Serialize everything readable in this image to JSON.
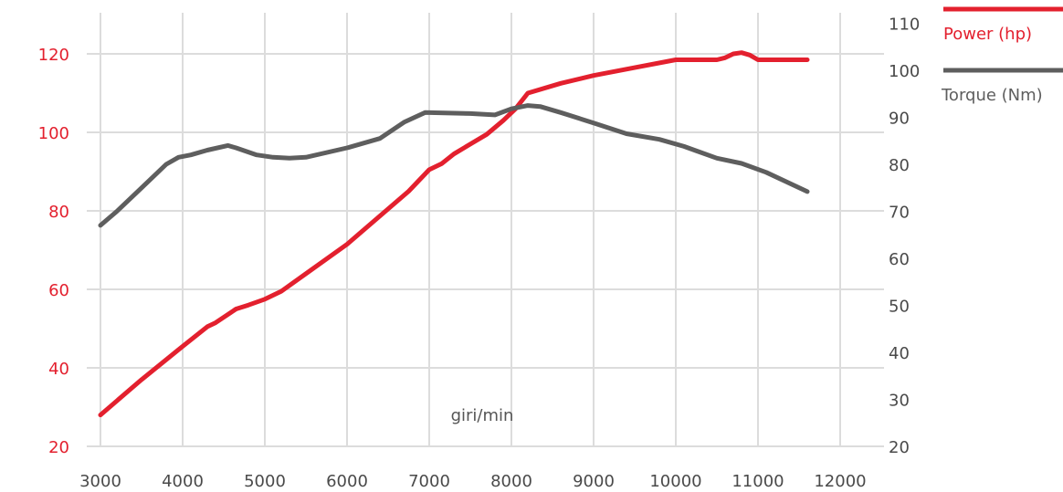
{
  "chart_data": {
    "type": "line",
    "xlabel": "giri/min",
    "x_ticks": [
      3000,
      4000,
      5000,
      6000,
      7000,
      8000,
      9000,
      10000,
      11000,
      12000
    ],
    "y_left_ticks": [
      20,
      40,
      60,
      80,
      100,
      120
    ],
    "y_right_ticks": [
      20,
      30,
      40,
      50,
      60,
      70,
      80,
      90,
      100,
      110
    ],
    "xlim": [
      3000,
      12000
    ],
    "ylim_left": [
      20,
      120
    ],
    "ylim_right": [
      20,
      110
    ],
    "grid": true,
    "legend_position": "top-right",
    "series": [
      {
        "name": "Power (hp)",
        "axis": "left",
        "color": "#e3202e",
        "points": [
          [
            3000,
            28
          ],
          [
            3500,
            37
          ],
          [
            4000,
            45.5
          ],
          [
            4300,
            50.5
          ],
          [
            4400,
            51.5
          ],
          [
            4650,
            55
          ],
          [
            4800,
            56
          ],
          [
            5000,
            57.5
          ],
          [
            5200,
            59.5
          ],
          [
            5500,
            64
          ],
          [
            6000,
            71.5
          ],
          [
            6500,
            80.5
          ],
          [
            6750,
            85
          ],
          [
            7000,
            90.5
          ],
          [
            7150,
            92
          ],
          [
            7300,
            94.5
          ],
          [
            7500,
            97
          ],
          [
            7700,
            99.5
          ],
          [
            7900,
            103
          ],
          [
            8050,
            106
          ],
          [
            8200,
            110
          ],
          [
            8600,
            112.5
          ],
          [
            9000,
            114.5
          ],
          [
            9500,
            116.5
          ],
          [
            10000,
            118.5
          ],
          [
            10500,
            118.5
          ],
          [
            10600,
            119
          ],
          [
            10700,
            120
          ],
          [
            10800,
            120.3
          ],
          [
            10900,
            119.7
          ],
          [
            11000,
            118.5
          ],
          [
            11600,
            118.5
          ]
        ]
      },
      {
        "name": "Torque (Nm)",
        "axis": "right",
        "color": "#5e5e5e",
        "points": [
          [
            3000,
            67
          ],
          [
            3200,
            70
          ],
          [
            3500,
            75
          ],
          [
            3800,
            80
          ],
          [
            3950,
            81.5
          ],
          [
            4100,
            82
          ],
          [
            4300,
            83
          ],
          [
            4550,
            84
          ],
          [
            4650,
            83.5
          ],
          [
            4900,
            82
          ],
          [
            5100,
            81.5
          ],
          [
            5300,
            81.3
          ],
          [
            5500,
            81.5
          ],
          [
            6000,
            83.5
          ],
          [
            6400,
            85.5
          ],
          [
            6700,
            89
          ],
          [
            6950,
            91
          ],
          [
            7500,
            90.8
          ],
          [
            7800,
            90.5
          ],
          [
            8000,
            91.8
          ],
          [
            8200,
            92.5
          ],
          [
            8350,
            92.3
          ],
          [
            8600,
            91
          ],
          [
            9000,
            88.8
          ],
          [
            9400,
            86.5
          ],
          [
            9800,
            85.3
          ],
          [
            10100,
            83.8
          ],
          [
            10500,
            81.3
          ],
          [
            10800,
            80.2
          ],
          [
            11100,
            78.3
          ],
          [
            11600,
            74.2
          ]
        ]
      }
    ]
  },
  "colors": {
    "power": "#e3202e",
    "torque": "#5e5e5e",
    "grid": "#dcdcdc",
    "tick_left": "#e3202e",
    "tick_right": "#4a4a4a",
    "tick_x": "#4a4a4a"
  }
}
